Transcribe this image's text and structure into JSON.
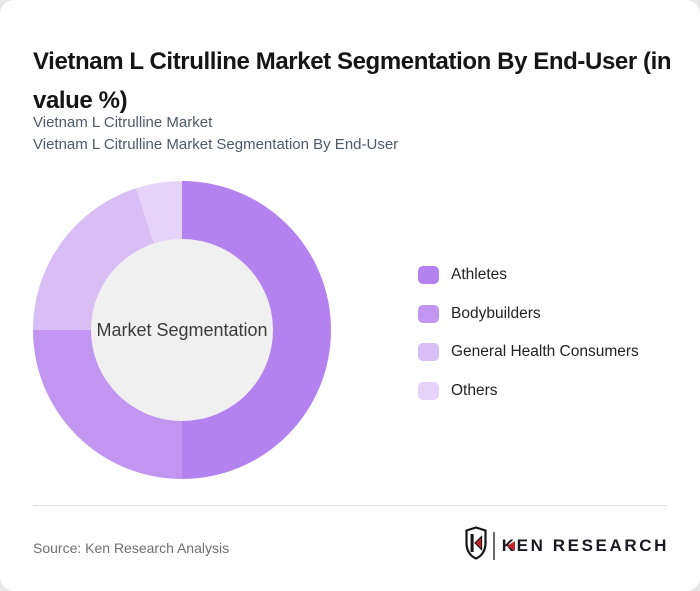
{
  "header": {
    "title": "Vietnam L Citrulline Market Segmentation By End-User (in value %)",
    "subtitle_line1": "Vietnam L Citrulline Market",
    "subtitle_line2": "Vietnam L Citrulline Market Segmentation By End-User"
  },
  "chart_data": {
    "type": "pie",
    "variant": "donut",
    "title": "Vietnam L Citrulline Market Segmentation By End-User (in value %)",
    "center_label": "Market Segmentation",
    "categories": [
      "Athletes",
      "Bodybuilders",
      "General Health Consumers",
      "Others"
    ],
    "values": [
      50,
      25,
      20,
      5
    ],
    "unit": "%",
    "colors": [
      "#b482ee",
      "#c296f0",
      "#d9bef5",
      "#e5d3f9"
    ],
    "inner_fill": "#f0f0f0",
    "start_angle_deg": 0,
    "direction": "clockwise",
    "legend_position": "right"
  },
  "footer": {
    "source": "Source: Ken Research Analysis",
    "logo_text": "KEN RESEARCH",
    "logo_icon": "ken-research-shield-icon"
  },
  "colors": {
    "logo_red": "#c2242a",
    "card_background": "#ffffff",
    "page_background": "#e7e7e7",
    "center_fill": "#f0f0f0"
  }
}
